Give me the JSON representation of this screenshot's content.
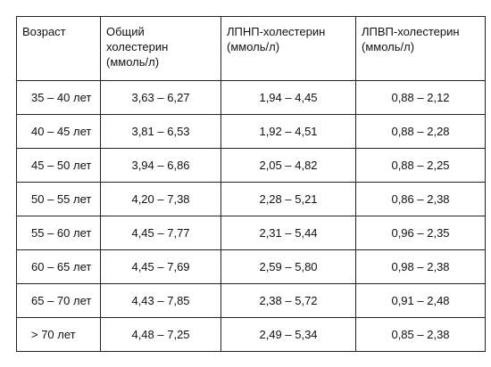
{
  "table": {
    "header": [
      [
        "Возраст"
      ],
      [
        "Общий",
        "холестерин",
        "(ммоль/л)"
      ],
      [
        "ЛПНП-холестерин",
        "(ммоль/л)"
      ],
      [
        "ЛПВП-холестерин",
        "(ммоль/л)"
      ]
    ],
    "rows": [
      [
        "35 – 40 лет",
        "3,63 – 6,27",
        "1,94 – 4,45",
        "0,88 – 2,12"
      ],
      [
        "40 – 45 лет",
        "3,81 – 6,53",
        "1,92 – 4,51",
        "0,88 – 2,28"
      ],
      [
        "45 – 50 лет",
        "3,94 – 6,86",
        "2,05 – 4,82",
        "0,88 – 2,25"
      ],
      [
        "50 – 55 лет",
        "4,20 – 7,38",
        "2,28 – 5,21",
        "0,86 – 2,38"
      ],
      [
        "55 – 60 лет",
        "4,45 – 7,77",
        "2,31 – 5,44",
        "0,96 – 2,35"
      ],
      [
        "60 – 65 лет",
        "4,45 – 7,69",
        "2,59 – 5,80",
        "0,98 – 2,38"
      ],
      [
        "65 – 70 лет",
        "4,43 – 7,85",
        "2,38 – 5,72",
        "0,91 – 2,48"
      ],
      [
        "> 70 лет",
        "4,48 – 7,25",
        "2,49 – 5,34",
        "0,85 – 2,38"
      ]
    ]
  }
}
